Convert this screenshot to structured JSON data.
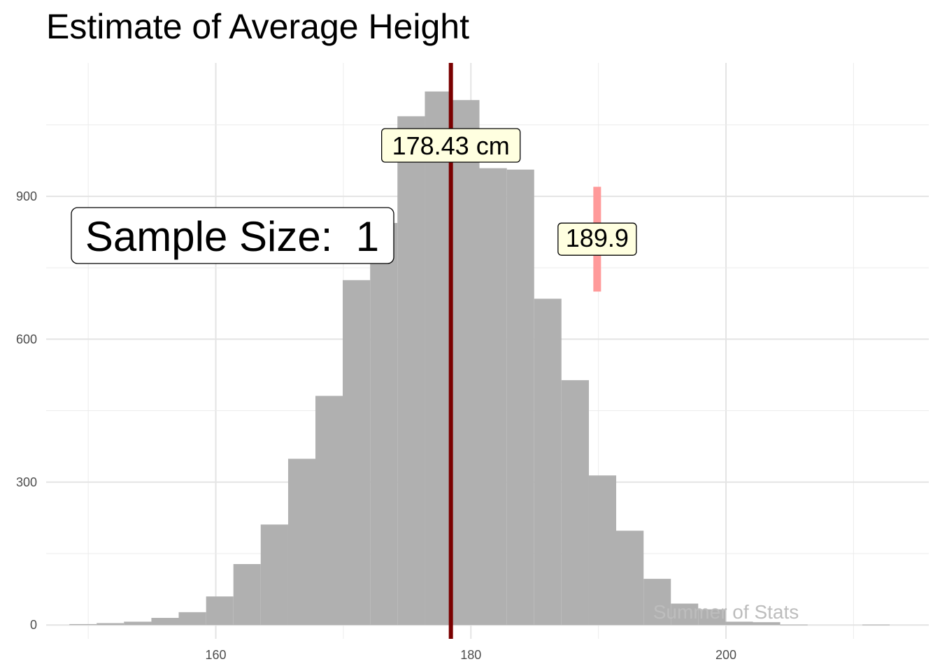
{
  "chart_data": {
    "type": "histogram",
    "title": "Estimate of Average Height",
    "xlabel": "",
    "ylabel": "",
    "x_ticks": [
      160,
      180,
      200
    ],
    "y_ticks": [
      0,
      300,
      600,
      900
    ],
    "xlim": [
      146.7,
      215.9
    ],
    "ylim": [
      -29,
      1180
    ],
    "grid": true,
    "bin_width": 2.14,
    "bins": [
      {
        "start": 148.52,
        "end": 150.66,
        "count": 2
      },
      {
        "start": 150.66,
        "end": 152.8,
        "count": 4
      },
      {
        "start": 152.8,
        "end": 154.95,
        "count": 7
      },
      {
        "start": 154.95,
        "end": 157.09,
        "count": 15
      },
      {
        "start": 157.09,
        "end": 159.24,
        "count": 27
      },
      {
        "start": 159.24,
        "end": 161.38,
        "count": 60
      },
      {
        "start": 161.38,
        "end": 163.52,
        "count": 128
      },
      {
        "start": 163.52,
        "end": 165.67,
        "count": 211
      },
      {
        "start": 165.67,
        "end": 167.81,
        "count": 349
      },
      {
        "start": 167.81,
        "end": 169.95,
        "count": 481
      },
      {
        "start": 169.95,
        "end": 172.1,
        "count": 724
      },
      {
        "start": 172.1,
        "end": 174.24,
        "count": 844
      },
      {
        "start": 174.24,
        "end": 176.39,
        "count": 1068
      },
      {
        "start": 176.39,
        "end": 178.53,
        "count": 1120
      },
      {
        "start": 178.53,
        "end": 180.67,
        "count": 1102
      },
      {
        "start": 180.67,
        "end": 182.82,
        "count": 959
      },
      {
        "start": 182.82,
        "end": 184.96,
        "count": 956
      },
      {
        "start": 184.96,
        "end": 187.1,
        "count": 685
      },
      {
        "start": 187.1,
        "end": 189.25,
        "count": 514
      },
      {
        "start": 189.25,
        "end": 191.39,
        "count": 314
      },
      {
        "start": 191.39,
        "end": 193.54,
        "count": 198
      },
      {
        "start": 193.54,
        "end": 195.68,
        "count": 97
      },
      {
        "start": 195.68,
        "end": 197.82,
        "count": 45
      },
      {
        "start": 197.82,
        "end": 199.97,
        "count": 33
      },
      {
        "start": 199.97,
        "end": 202.11,
        "count": 7
      },
      {
        "start": 202.11,
        "end": 204.25,
        "count": 6
      },
      {
        "start": 204.25,
        "end": 206.4,
        "count": 1
      },
      {
        "start": 206.4,
        "end": 208.54,
        "count": 0
      },
      {
        "start": 208.54,
        "end": 210.69,
        "count": 0
      },
      {
        "start": 210.69,
        "end": 212.83,
        "count": 1
      }
    ],
    "bar_color": "#b0b0b0",
    "mean_line": {
      "x": 178.43,
      "color": "#7a0000",
      "label": "178.43 cm"
    },
    "sample_marker": {
      "x": 189.9,
      "y_range": [
        700,
        920
      ],
      "color": "#ff9a9a",
      "label": "189.9"
    },
    "annotation": "Sample Size:  1",
    "label_fill": "#ffffe0",
    "caption": "Summer of Stats"
  }
}
